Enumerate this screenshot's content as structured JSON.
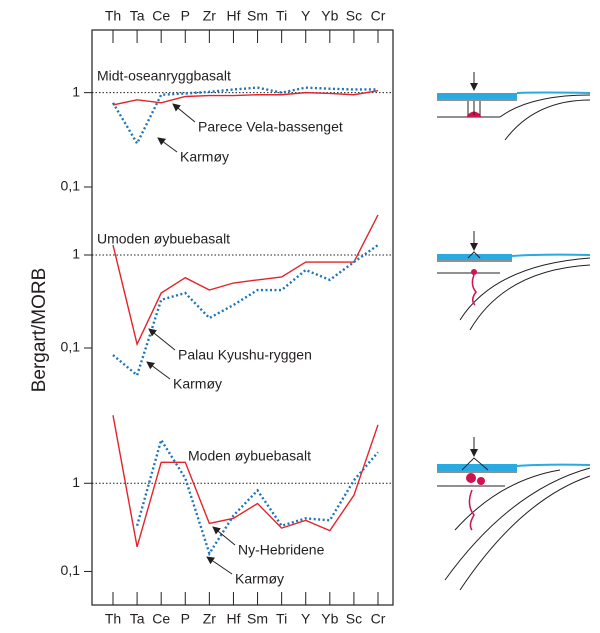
{
  "categories": [
    "Th",
    "Ta",
    "Ce",
    "P",
    "Zr",
    "Hf",
    "Sm",
    "Ti",
    "Y",
    "Yb",
    "Sc",
    "Cr"
  ],
  "ylabel": "Bergart/MORB",
  "chart_data": [
    {
      "type": "line",
      "title": "Midt-oseanryggbasalt",
      "log_scale": true,
      "ylim": [
        0.1,
        4.5
      ],
      "yticks": [
        1,
        {
          "value": 0.1,
          "label": "0,1"
        }
      ],
      "reference_line": 1,
      "series": [
        {
          "color": "#e3242b",
          "style": "solid",
          "values": [
            0.74,
            0.84,
            0.78,
            0.91,
            0.93,
            0.93,
            0.95,
            0.95,
            1.0,
            0.98,
            0.95,
            1.05
          ]
        },
        {
          "color": "#1b75bb",
          "style": "dotted",
          "values": [
            0.78,
            0.29,
            0.95,
            0.98,
            1.02,
            1.08,
            1.13,
            1.0,
            1.13,
            1.1,
            1.08,
            1.08
          ]
        }
      ],
      "annotations": [
        "Parece Vela-bassenget",
        "Karmøy"
      ]
    },
    {
      "type": "line",
      "title": "Umoden øybuebasalt",
      "log_scale": true,
      "ylim": [
        0.05,
        5
      ],
      "yticks": [
        1,
        {
          "value": 0.1,
          "label": "0,1"
        }
      ],
      "reference_line": 1,
      "series": [
        {
          "color": "#e3242b",
          "style": "solid",
          "values": [
            1.28,
            0.11,
            0.39,
            0.57,
            0.42,
            0.5,
            0.54,
            0.58,
            0.84,
            0.84,
            0.84,
            2.7
          ]
        },
        {
          "color": "#1b75bb",
          "style": "dotted",
          "values": [
            0.084,
            0.051,
            0.33,
            0.39,
            0.21,
            0.29,
            0.42,
            0.42,
            0.69,
            0.54,
            0.84,
            1.28
          ]
        }
      ],
      "annotations": [
        "Palau Kyushu-ryggen",
        "Karmøy"
      ]
    },
    {
      "type": "line",
      "title": "Moden øybuebasalt",
      "log_scale": true,
      "ylim": [
        0.05,
        30
      ],
      "yticks": [
        1,
        {
          "value": 0.1,
          "label": "0,1"
        }
      ],
      "reference_line": 1,
      "series": [
        {
          "color": "#e3242b",
          "style": "solid",
          "values": [
            5.9,
            0.19,
            1.73,
            1.73,
            0.35,
            0.4,
            0.59,
            0.31,
            0.38,
            0.29,
            0.73,
            4.6
          ]
        },
        {
          "color": "#1b75bb",
          "style": "dotted",
          "values": [
            null,
            0.33,
            3.1,
            1.14,
            0.16,
            0.43,
            0.83,
            0.33,
            0.4,
            0.38,
            1.08,
            2.25
          ]
        }
      ],
      "annotations": [
        "Ny-Hebridene",
        "Karmøy"
      ]
    }
  ]
}
